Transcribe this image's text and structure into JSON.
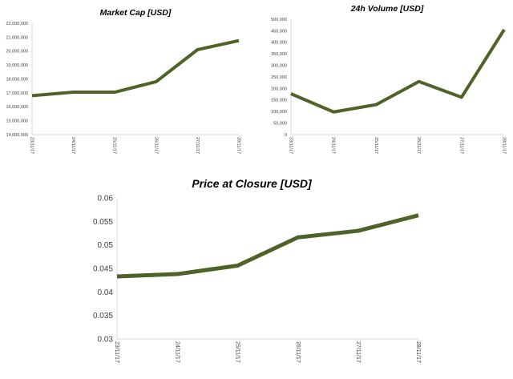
{
  "line_color": "#4f6228",
  "chart_data": [
    {
      "type": "line",
      "title": "Market Cap [USD]",
      "categories": [
        "23/11/17",
        "24/11/17",
        "25/11/17",
        "26/11/17",
        "27/11/17",
        "28/11/17"
      ],
      "values": [
        16800000,
        17050000,
        17050000,
        17800000,
        20100000,
        20750000
      ],
      "ylim": [
        14000000,
        22000000
      ],
      "yticks": [
        14000000,
        15000000,
        16000000,
        17000000,
        18000000,
        19000000,
        20000000,
        21000000,
        22000000
      ],
      "ytick_labels": [
        "14,000,000",
        "15,000,000",
        "16,000,000",
        "17,000,000",
        "18,000,000",
        "19,000,000",
        "20,000,000",
        "21,000,000",
        "22,000,000"
      ],
      "grid": false
    },
    {
      "type": "line",
      "title": "24h Volume [USD]",
      "categories": [
        "23/11/17",
        "24/11/17",
        "25/11/17",
        "26/11/17",
        "27/11/17",
        "28/11/17"
      ],
      "values": [
        177000,
        98000,
        130000,
        230000,
        162000,
        455000
      ],
      "ylim": [
        0,
        500000
      ],
      "yticks": [
        0,
        50000,
        100000,
        150000,
        200000,
        250000,
        300000,
        350000,
        400000,
        450000,
        500000
      ],
      "ytick_labels": [
        "0",
        "50,000",
        "100,000",
        "150,000",
        "200,000",
        "250,000",
        "300,000",
        "350,000",
        "400,000",
        "450,000",
        "500,000"
      ],
      "grid": false
    },
    {
      "type": "line",
      "title": "Price at Closure [USD]",
      "categories": [
        "23/11/17",
        "24/11/17",
        "25/11/17",
        "26/11/17",
        "27/11/17",
        "28/11/17"
      ],
      "values": [
        0.0433,
        0.0438,
        0.0456,
        0.0516,
        0.053,
        0.0563
      ],
      "ylim": [
        0.03,
        0.06
      ],
      "yticks": [
        0.03,
        0.035,
        0.04,
        0.045,
        0.05,
        0.055,
        0.06
      ],
      "ytick_labels": [
        "0.03",
        "0.035",
        "0.04",
        "0.045",
        "0.05",
        "0.055",
        "0.06"
      ],
      "grid": false
    }
  ]
}
